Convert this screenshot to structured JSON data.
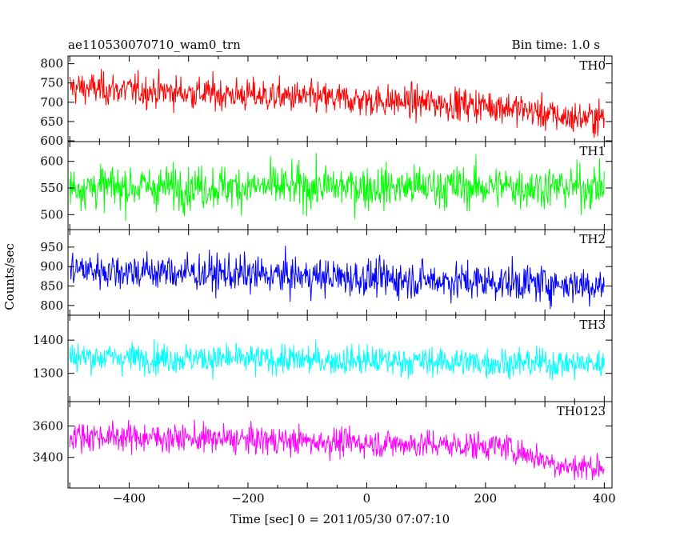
{
  "header": {
    "left_title": "ae110530070710_wam0_trn",
    "right_title": "Bin time: 1.0 s"
  },
  "chart_data": {
    "type": "line",
    "xlabel": "Time [sec] 0 = 2011/05/30 07:07:10",
    "ylabel": "Counts/sec",
    "xlim": [
      -503,
      413
    ],
    "x_ticks": [
      -400,
      -200,
      0,
      200,
      400
    ],
    "bin_time_s": 1.0,
    "panels": [
      {
        "name": "TH0",
        "color": "#ff0000",
        "ylim": [
          598,
          820
        ],
        "y_ticks": [
          600,
          650,
          700,
          750,
          800
        ],
        "x_range": [
          -500,
          400
        ],
        "mean_start": 738,
        "mean_end": 690,
        "drop_at": 230,
        "mean_after_drop": 660,
        "noise": 40
      },
      {
        "name": "TH1",
        "color": "#00ff00",
        "ylim": [
          472,
          637
        ],
        "y_ticks": [
          500,
          550,
          600
        ],
        "x_range": [
          -500,
          400
        ],
        "mean_start": 552,
        "mean_end": 552,
        "noise": 38
      },
      {
        "name": "TH2",
        "color": "#0000ff",
        "ylim": [
          775,
          995
        ],
        "y_ticks": [
          800,
          850,
          900,
          950
        ],
        "x_range": [
          -500,
          400
        ],
        "mean_start": 893,
        "mean_end": 852,
        "noise": 45
      },
      {
        "name": "TH3",
        "color": "#00ffff",
        "ylim": [
          1215,
          1475
        ],
        "y_ticks": [
          1300,
          1400
        ],
        "x_range": [
          -500,
          400
        ],
        "mean_start": 1350,
        "mean_end": 1328,
        "noise": 42
      },
      {
        "name": "TH0123",
        "color": "#ff00ff",
        "ylim": [
          3205,
          3755
        ],
        "y_ticks": [
          3400,
          3600
        ],
        "x_range": [
          -500,
          400
        ],
        "mean_start": 3540,
        "mean_end": 3470,
        "drop_at": 230,
        "mean_after_drop": 3340,
        "noise": 85
      }
    ]
  }
}
